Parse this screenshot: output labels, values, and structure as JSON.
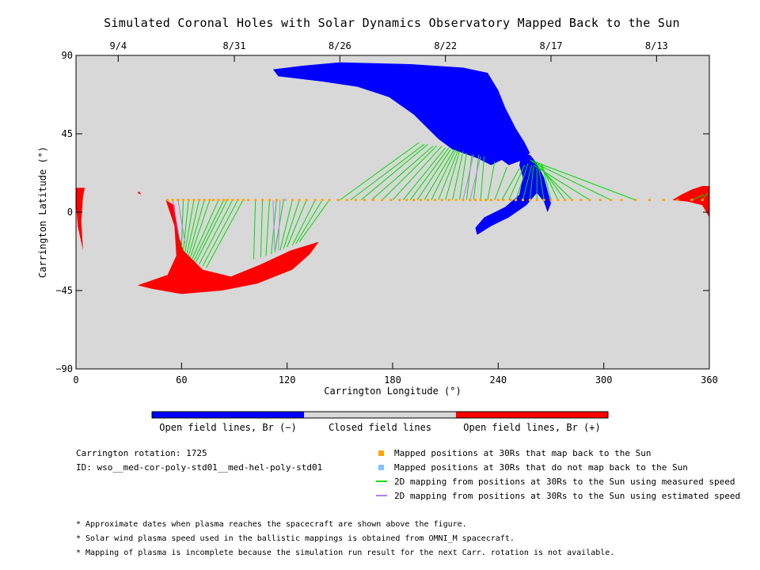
{
  "chart_data": {
    "type": "scatter",
    "title": "Simulated Coronal Holes with Solar Dynamics Observatory Mapped Back to the Sun",
    "xlabel": "Carrington Longitude (°)",
    "ylabel": "Carrington Latitude (°)",
    "xlim": [
      0,
      360
    ],
    "ylim": [
      -90,
      90
    ],
    "x_ticks": [
      0,
      60,
      120,
      180,
      240,
      300,
      360
    ],
    "y_ticks": [
      90,
      45,
      0,
      -45,
      -90
    ],
    "y_tick_labels": [
      "90",
      "45",
      "0",
      "−45",
      "−90"
    ],
    "top_axis": {
      "labels": [
        "9/4",
        "8/31",
        "8/26",
        "8/22",
        "8/17",
        "8/13"
      ],
      "longitudes": [
        24,
        90,
        150,
        210,
        270,
        330
      ]
    },
    "colors": {
      "background": "#d8d8d8",
      "open_negative": "#0000ff",
      "open_positive": "#ff0000",
      "closed": "#d8d8d8",
      "mapped": "#ffa500",
      "not_mapped": "#87bfff",
      "measured_line": "#00dd00",
      "estimated_line": "#b080f0"
    },
    "regions": [
      {
        "polarity": "negative",
        "points": [
          [
            112,
            82
          ],
          [
            128,
            84
          ],
          [
            150,
            86
          ],
          [
            190,
            85
          ],
          [
            220,
            83
          ],
          [
            234,
            80
          ],
          [
            240,
            70
          ],
          [
            244,
            60
          ],
          [
            250,
            48
          ],
          [
            255,
            40
          ],
          [
            258,
            34
          ],
          [
            254,
            30
          ],
          [
            246,
            27
          ],
          [
            242,
            30
          ],
          [
            236,
            27
          ],
          [
            228,
            31
          ],
          [
            214,
            36
          ],
          [
            206,
            42
          ],
          [
            192,
            56
          ],
          [
            178,
            66
          ],
          [
            160,
            72
          ],
          [
            140,
            75
          ],
          [
            115,
            78
          ]
        ]
      },
      {
        "polarity": "negative",
        "points": [
          [
            253,
            32
          ],
          [
            258,
            33
          ],
          [
            262,
            28
          ],
          [
            266,
            20
          ],
          [
            270,
            5
          ],
          [
            268,
            0
          ],
          [
            266,
            6
          ],
          [
            262,
            11
          ],
          [
            256,
            4
          ],
          [
            246,
            -3
          ],
          [
            236,
            -8
          ],
          [
            228,
            -13
          ],
          [
            227,
            -9
          ],
          [
            232,
            -3
          ],
          [
            244,
            3
          ],
          [
            252,
            10
          ],
          [
            254,
            20
          ],
          [
            252,
            27
          ]
        ]
      },
      {
        "polarity": "positive",
        "points": [
          [
            51,
            7
          ],
          [
            56,
            4
          ],
          [
            58,
            -12
          ],
          [
            61,
            -22
          ],
          [
            72,
            -33
          ],
          [
            88,
            -37
          ],
          [
            105,
            -30
          ],
          [
            122,
            -22
          ],
          [
            138,
            -17
          ],
          [
            133,
            -24
          ],
          [
            123,
            -33
          ],
          [
            103,
            -41
          ],
          [
            83,
            -45
          ],
          [
            60,
            -47
          ],
          [
            43,
            -44
          ],
          [
            35,
            -42
          ],
          [
            52,
            -36
          ],
          [
            57,
            -25
          ],
          [
            56,
            -8
          ]
        ]
      },
      {
        "polarity": "positive",
        "points": [
          [
            35,
            11
          ],
          [
            37,
            10
          ],
          [
            36,
            12
          ]
        ]
      },
      {
        "polarity": "positive",
        "points": [
          [
            0,
            14
          ],
          [
            5,
            14
          ],
          [
            4,
            9
          ],
          [
            3,
            -5
          ],
          [
            4,
            -22
          ],
          [
            1,
            -8
          ],
          [
            0,
            5
          ]
        ]
      },
      {
        "polarity": "positive",
        "points": [
          [
            360,
            15
          ],
          [
            356,
            15
          ],
          [
            350,
            13
          ],
          [
            344,
            10
          ],
          [
            339,
            7
          ],
          [
            348,
            6
          ],
          [
            356,
            4
          ],
          [
            360,
            -3
          ]
        ]
      }
    ],
    "mapped_points": [
      [
        52,
        7
      ],
      [
        55,
        7
      ],
      [
        58,
        7
      ],
      [
        61,
        7
      ],
      [
        64,
        7
      ],
      [
        67,
        7
      ],
      [
        70,
        7
      ],
      [
        73,
        7
      ],
      [
        76,
        7
      ],
      [
        78,
        7
      ],
      [
        81,
        7
      ],
      [
        84,
        7
      ],
      [
        86,
        7
      ],
      [
        89,
        7
      ],
      [
        92,
        7
      ],
      [
        95,
        7
      ],
      [
        98,
        7
      ],
      [
        102,
        7
      ],
      [
        106,
        7
      ],
      [
        110,
        7
      ],
      [
        114,
        7
      ],
      [
        118,
        7
      ],
      [
        123,
        7
      ],
      [
        127,
        7
      ],
      [
        131,
        7
      ],
      [
        136,
        7
      ],
      [
        140,
        7
      ],
      [
        144,
        7
      ],
      [
        149,
        7
      ],
      [
        154,
        7
      ],
      [
        159,
        7
      ],
      [
        164,
        7
      ],
      [
        169,
        7
      ],
      [
        174,
        7
      ],
      [
        179,
        7
      ],
      [
        184,
        7
      ],
      [
        188,
        7
      ],
      [
        192,
        7
      ],
      [
        196,
        7
      ],
      [
        200,
        7
      ],
      [
        204,
        7
      ],
      [
        208,
        7
      ],
      [
        212,
        7
      ],
      [
        216,
        7
      ],
      [
        220,
        7
      ],
      [
        224,
        7
      ],
      [
        227,
        7
      ],
      [
        230,
        7
      ],
      [
        233,
        7
      ],
      [
        236,
        7
      ],
      [
        240,
        7
      ],
      [
        243,
        7
      ],
      [
        247,
        7
      ],
      [
        250,
        7
      ],
      [
        254,
        7
      ],
      [
        258,
        7
      ],
      [
        262,
        7
      ],
      [
        266,
        7
      ],
      [
        270,
        7
      ],
      [
        274,
        7
      ],
      [
        278,
        7
      ],
      [
        282,
        7
      ],
      [
        287,
        7
      ],
      [
        292,
        7
      ],
      [
        298,
        7
      ],
      [
        304,
        7
      ],
      [
        310,
        7
      ],
      [
        318,
        7
      ],
      [
        326,
        7
      ],
      [
        334,
        7
      ],
      [
        342,
        7
      ],
      [
        350,
        7
      ],
      [
        356,
        7
      ]
    ],
    "unmapped_points": [
      [
        119,
        7
      ]
    ],
    "measured_lines": [
      [
        [
          61,
          7
        ],
        [
          60,
          -20
        ]
      ],
      [
        [
          64,
          7
        ],
        [
          61,
          -22
        ]
      ],
      [
        [
          67,
          7
        ],
        [
          62,
          -23
        ]
      ],
      [
        [
          70,
          7
        ],
        [
          63,
          -24
        ]
      ],
      [
        [
          73,
          7
        ],
        [
          64,
          -25
        ]
      ],
      [
        [
          76,
          7
        ],
        [
          65,
          -26
        ]
      ],
      [
        [
          81,
          7
        ],
        [
          66,
          -27
        ]
      ],
      [
        [
          84,
          7
        ],
        [
          67,
          -28
        ]
      ],
      [
        [
          86,
          7
        ],
        [
          68,
          -29
        ]
      ],
      [
        [
          89,
          7
        ],
        [
          70,
          -30
        ]
      ],
      [
        [
          92,
          7
        ],
        [
          72,
          -31
        ]
      ],
      [
        [
          95,
          7
        ],
        [
          74,
          -32
        ]
      ],
      [
        [
          102,
          7
        ],
        [
          101,
          -27
        ]
      ],
      [
        [
          106,
          7
        ],
        [
          105,
          -26
        ]
      ],
      [
        [
          110,
          7
        ],
        [
          108,
          -25
        ]
      ],
      [
        [
          114,
          7
        ],
        [
          111,
          -24
        ]
      ],
      [
        [
          118,
          7
        ],
        [
          113,
          -23
        ]
      ],
      [
        [
          123,
          7
        ],
        [
          116,
          -22
        ]
      ],
      [
        [
          127,
          7
        ],
        [
          118,
          -21
        ]
      ],
      [
        [
          131,
          7
        ],
        [
          120,
          -20
        ]
      ],
      [
        [
          136,
          7
        ],
        [
          123,
          -19
        ]
      ],
      [
        [
          140,
          7
        ],
        [
          125,
          -18
        ]
      ],
      [
        [
          144,
          7
        ],
        [
          127,
          -17
        ]
      ],
      [
        [
          150,
          7
        ],
        [
          195,
          40
        ]
      ],
      [
        [
          156,
          7
        ],
        [
          198,
          39
        ]
      ],
      [
        [
          162,
          7
        ],
        [
          200,
          39
        ]
      ],
      [
        [
          168,
          7
        ],
        [
          203,
          38
        ]
      ],
      [
        [
          174,
          7
        ],
        [
          205,
          38
        ]
      ],
      [
        [
          180,
          7
        ],
        [
          208,
          38
        ]
      ],
      [
        [
          186,
          7
        ],
        [
          210,
          37
        ]
      ],
      [
        [
          190,
          7
        ],
        [
          212,
          37
        ]
      ],
      [
        [
          194,
          7
        ],
        [
          213,
          36
        ]
      ],
      [
        [
          198,
          7
        ],
        [
          215,
          36
        ]
      ],
      [
        [
          202,
          7
        ],
        [
          216,
          36
        ]
      ],
      [
        [
          206,
          7
        ],
        [
          217,
          35
        ]
      ],
      [
        [
          210,
          7
        ],
        [
          218,
          35
        ]
      ],
      [
        [
          214,
          7
        ],
        [
          220,
          35
        ]
      ],
      [
        [
          218,
          7
        ],
        [
          222,
          34
        ]
      ],
      [
        [
          222,
          7
        ],
        [
          225,
          33
        ]
      ],
      [
        [
          226,
          7
        ],
        [
          229,
          33
        ]
      ],
      [
        [
          230,
          7
        ],
        [
          232,
          32
        ]
      ],
      [
        [
          234,
          7
        ],
        [
          238,
          29
        ]
      ],
      [
        [
          238,
          7
        ],
        [
          245,
          26
        ]
      ],
      [
        [
          242,
          7
        ],
        [
          252,
          25
        ]
      ],
      [
        [
          246,
          7
        ],
        [
          255,
          27
        ]
      ],
      [
        [
          250,
          7
        ],
        [
          257,
          28
        ]
      ],
      [
        [
          254,
          7
        ],
        [
          259,
          27
        ]
      ],
      [
        [
          258,
          7
        ],
        [
          260,
          26
        ]
      ],
      [
        [
          262,
          7
        ],
        [
          262,
          25
        ]
      ],
      [
        [
          266,
          7
        ],
        [
          263,
          26
        ]
      ],
      [
        [
          270,
          7
        ],
        [
          265,
          27
        ]
      ],
      [
        [
          274,
          7
        ],
        [
          264,
          28
        ]
      ],
      [
        [
          278,
          7
        ],
        [
          262,
          29
        ]
      ],
      [
        [
          282,
          7
        ],
        [
          261,
          28
        ]
      ],
      [
        [
          292,
          7
        ],
        [
          260,
          27
        ]
      ],
      [
        [
          304,
          7
        ],
        [
          259,
          29
        ]
      ],
      [
        [
          318,
          7
        ],
        [
          258,
          30
        ]
      ],
      [
        [
          350,
          7
        ],
        [
          357,
          10
        ]
      ],
      [
        [
          356,
          7
        ],
        [
          359,
          11
        ]
      ]
    ],
    "estimated_lines": [
      [
        [
          55,
          7
        ],
        [
          59,
          -16
        ]
      ],
      [
        [
          58,
          7
        ],
        [
          62,
          -18
        ]
      ],
      [
        [
          112,
          7
        ],
        [
          113,
          -22
        ]
      ],
      [
        [
          116,
          7
        ],
        [
          115,
          -22
        ]
      ],
      [
        [
          220,
          7
        ],
        [
          226,
          33
        ]
      ],
      [
        [
          224,
          7
        ],
        [
          230,
          32
        ]
      ]
    ]
  },
  "colorbar": {
    "labels": [
      "Open field lines, Br (−)",
      "Closed field lines",
      "Open field lines, Br (+)"
    ],
    "colors": [
      "#0000ff",
      "#d8d8d8",
      "#ff0000"
    ]
  },
  "info": {
    "rotation": "Carrington rotation: 1725",
    "id": "ID: wso__med-cor-poly-std01__med-hel-poly-std01"
  },
  "legend": {
    "items": [
      {
        "label": "Mapped positions at 30Rs that map back to the Sun",
        "marker": "square",
        "color": "#ffa500"
      },
      {
        "label": "Mapped positions at 30Rs that do not map back to the Sun",
        "marker": "square",
        "color": "#87bfff"
      },
      {
        "label": "2D mapping from positions at 30Rs to the Sun using measured speed",
        "marker": "line",
        "color": "#00dd00"
      },
      {
        "label": "2D mapping from positions at 30Rs to the Sun using estimated speed",
        "marker": "line",
        "color": "#b080f0"
      }
    ]
  },
  "notes": [
    "* Approximate dates when plasma reaches the spacecraft are shown above the figure.",
    "* Solar wind plasma speed used in the ballistic mappings is obtained from OMNI_M spacecraft.",
    "* Mapping of plasma is incomplete because the simulation run result for the next Carr. rotation is not available."
  ]
}
